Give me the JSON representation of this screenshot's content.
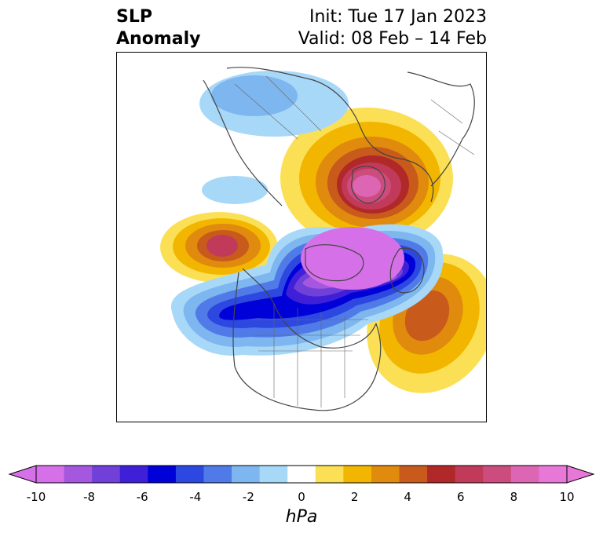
{
  "title": {
    "left_line1": "SLP",
    "left_line2": "Anomaly",
    "right_line1": "Init: Tue 17 Jan 2023",
    "right_line2": "Valid: 08 Feb – 14 Feb"
  },
  "colorbar": {
    "unit_label": "hPa",
    "ticks": [
      "-10",
      "-8",
      "-6",
      "-4",
      "-2",
      "0",
      "2",
      "4",
      "6",
      "8",
      "10"
    ],
    "colors": [
      "#d670e8",
      "#a557e0",
      "#7040d8",
      "#3f20d8",
      "#0000d8",
      "#2d48e0",
      "#4f7ae8",
      "#7eb6f0",
      "#a8d8f8",
      "#ffffff",
      "#fbe055",
      "#f2b600",
      "#e08a0e",
      "#c85a1c",
      "#b02828",
      "#c23a5a",
      "#cc4c7e",
      "#dc66b4",
      "#e878d8"
    ],
    "min": -10,
    "max": 10,
    "step": 1
  },
  "anomaly_centers": [
    {
      "name": "polar-high",
      "sign": "positive",
      "peak_hpa": 9
    },
    {
      "name": "pacific-high",
      "sign": "positive",
      "peak_hpa": 6
    },
    {
      "name": "atlantic-high",
      "sign": "positive",
      "peak_hpa": 5
    },
    {
      "name": "north-american-low",
      "sign": "negative",
      "peak_hpa": -10
    },
    {
      "name": "siberian-low",
      "sign": "negative",
      "peak_hpa": -3
    }
  ]
}
